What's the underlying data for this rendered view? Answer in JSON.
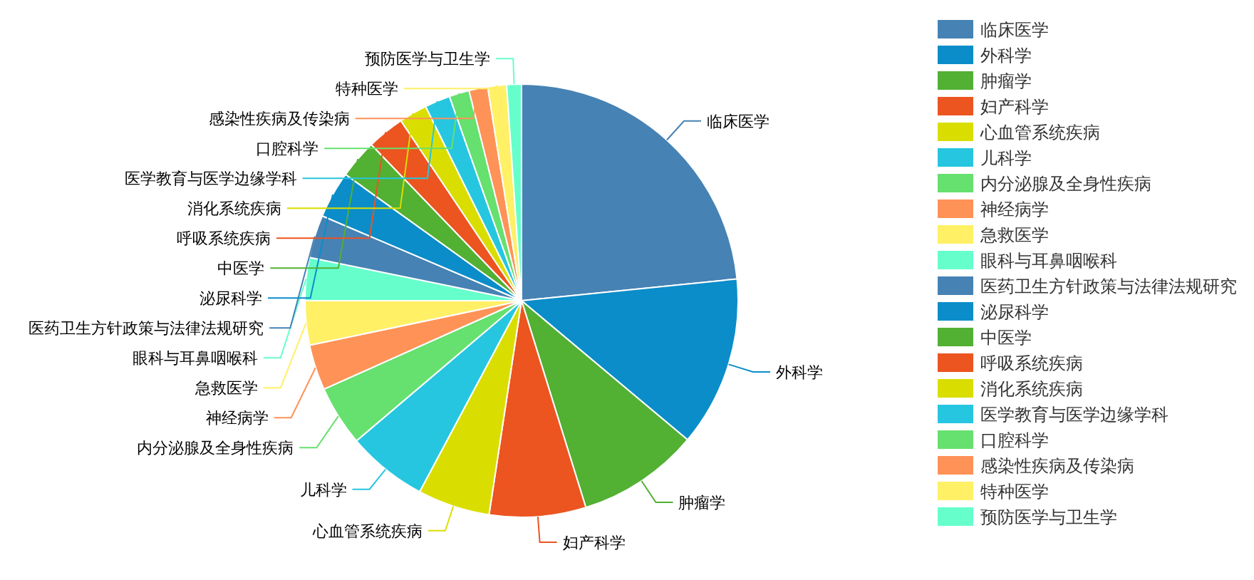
{
  "chart_data": {
    "type": "pie",
    "categories": [
      "临床医学",
      "外科学",
      "肿瘤学",
      "妇产科学",
      "心血管系统疾病",
      "儿科学",
      "内分泌腺及全身性疾病",
      "神经病学",
      "急救医学",
      "眼科与耳鼻咽喉科",
      "医药卫生方针政策与法律法规研究",
      "泌尿科学",
      "中医学",
      "呼吸系统疾病",
      "消化系统疾病",
      "医学教育与医学边缘学科",
      "口腔科学",
      "感染性疾病及传染病",
      "特种医学",
      "预防医学与卫生学"
    ],
    "values": [
      23.4,
      12.7,
      9.1,
      7.2,
      5.4,
      6.0,
      4.5,
      3.4,
      3.3,
      3.2,
      3.2,
      3.5,
      2.9,
      2.8,
      2.1,
      1.9,
      1.5,
      1.4,
      1.4,
      1.1
    ],
    "colors": [
      "#4682b4",
      "#0b8dc9",
      "#52b033",
      "#ec5420",
      "#dade00",
      "#26c6e0",
      "#66e06e",
      "#ff9257",
      "#fff066",
      "#66ffcc",
      "#4682b4",
      "#0b8dc9",
      "#52b033",
      "#ec5420",
      "#dade00",
      "#26c6e0",
      "#66e06e",
      "#ff9257",
      "#fff066",
      "#66ffcc"
    ],
    "legend": "top right"
  }
}
